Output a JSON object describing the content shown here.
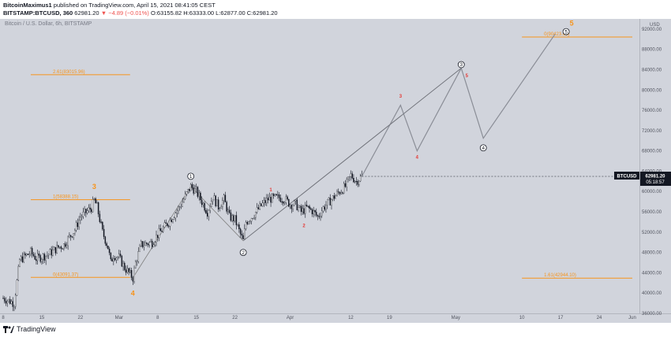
{
  "header": {
    "author": "BitcoinMaximus1",
    "published_text": "published on TradingView.com, April 15, 2021 08:41:05 CEST",
    "symbol_line": "BITSTAMP:BTCUSD, 360",
    "price": "62981.20",
    "change": "▼ −4.89 (−0.01%)",
    "ohlc": "O:63155.82  H:63333.00  L:62877.00  C:62981.20"
  },
  "chart_title": "Bitcoin / U.S. Dollar, 6h, BITSTAMP",
  "footer": {
    "brand": "TradingView"
  },
  "colors": {
    "background": "#d1d4dc",
    "fib": "#f7931a",
    "wave_red": "#e53935",
    "candle": "#131722",
    "projection": "#808080"
  },
  "chart_data": {
    "type": "candlestick",
    "symbol": "BTCUSD",
    "interval": "6h",
    "ylim": [
      36000,
      94000
    ],
    "y_ticks": [
      36000,
      40000,
      44000,
      48000,
      52000,
      56000,
      60000,
      64000,
      68000,
      72000,
      76000,
      80000,
      84000,
      88000,
      92000
    ],
    "y_tick_labels": [
      "36000.00",
      "40000.00",
      "44000.00",
      "48000.00",
      "52000.00",
      "56000.00",
      "60000.00",
      "64000.00",
      "68000.00",
      "72000.00",
      "76000.00",
      "80000.00",
      "84000.00",
      "88000.00",
      "92000.00"
    ],
    "currency_label": "USD",
    "x_ticks": [
      "8",
      "15",
      "22",
      "Mar",
      "8",
      "15",
      "22",
      "Apr",
      "12",
      "19",
      "May",
      "10",
      "17",
      "24",
      "Jun"
    ],
    "x_tick_days": [
      0,
      7,
      14,
      21,
      28,
      35,
      42,
      52,
      63,
      70,
      82,
      94,
      101,
      108,
      114
    ],
    "last_price": {
      "label": "BTCUSD",
      "value": "62981.20",
      "countdown": "05:18:57"
    },
    "price_path": [
      [
        0,
        39000
      ],
      [
        2,
        38000
      ],
      [
        3,
        46500
      ],
      [
        5,
        48000
      ],
      [
        6,
        46800
      ],
      [
        8,
        47500
      ],
      [
        10,
        49000
      ],
      [
        11,
        49500
      ],
      [
        13,
        52500
      ],
      [
        14,
        55000
      ],
      [
        16,
        56800
      ],
      [
        16.5,
        58300
      ],
      [
        17,
        57000
      ],
      [
        18,
        52000
      ],
      [
        19,
        49000
      ],
      [
        19.5,
        46000
      ],
      [
        20,
        47500
      ],
      [
        21,
        47000
      ],
      [
        22,
        45000
      ],
      [
        23.5,
        43000
      ],
      [
        24,
        46000
      ],
      [
        25,
        49500
      ],
      [
        27,
        50000
      ],
      [
        28,
        51500
      ],
      [
        30,
        54000
      ],
      [
        32,
        57000
      ],
      [
        34,
        61000
      ],
      [
        35,
        60000
      ],
      [
        36.5,
        57000
      ],
      [
        37,
        56000
      ],
      [
        38,
        59000
      ],
      [
        39,
        57000
      ],
      [
        40,
        58500
      ],
      [
        41,
        55000
      ],
      [
        42,
        54500
      ],
      [
        43,
        51500
      ],
      [
        43.5,
        50300
      ],
      [
        44,
        54000
      ],
      [
        45,
        55000
      ],
      [
        47,
        57500
      ],
      [
        48,
        58500
      ],
      [
        50,
        58800
      ],
      [
        51,
        58500
      ],
      [
        52,
        57500
      ],
      [
        53,
        57500
      ],
      [
        54,
        56000
      ],
      [
        55,
        56800
      ],
      [
        56,
        56200
      ],
      [
        57,
        55000
      ],
      [
        58,
        56800
      ],
      [
        60,
        59000
      ],
      [
        61,
        60000
      ],
      [
        62,
        61000
      ],
      [
        63,
        63200
      ],
      [
        64,
        62000
      ],
      [
        65,
        63000
      ]
    ],
    "projection_white": [
      [
        65,
        63000
      ],
      [
        72,
        77000
      ],
      [
        75,
        68000
      ],
      [
        83,
        84300
      ],
      [
        87,
        70500
      ],
      [
        100,
        91000
      ]
    ],
    "projection_black": [
      [
        43.5,
        50300
      ],
      [
        83,
        84300
      ]
    ],
    "trend_lines": [
      [
        [
          23.5,
          43000
        ],
        [
          34,
          61000
        ]
      ],
      [
        [
          34,
          61000
        ],
        [
          43.5,
          50300
        ]
      ],
      [
        [
          43.5,
          50300
        ],
        [
          83,
          84300
        ]
      ]
    ],
    "fib_levels": [
      {
        "label": "2.61(83015.96)",
        "value": 83015.96,
        "from_day": 5,
        "to_day": 23
      },
      {
        "label": "1(58388.15)",
        "value": 58388.15,
        "from_day": 5,
        "to_day": 23
      },
      {
        "label": "0(43091.37)",
        "value": 43091.37,
        "from_day": 5,
        "to_day": 23
      },
      {
        "label": "0(90423.66)",
        "value": 90423.66,
        "from_day": 94,
        "to_day": 114
      },
      {
        "label": "1.61(42944.10)",
        "value": 42944.1,
        "from_day": 94,
        "to_day": 114
      }
    ],
    "wave_labels_orange": [
      {
        "text": "3",
        "day": 16.5,
        "price": 60500
      },
      {
        "text": "4",
        "day": 23.5,
        "price": 39500
      },
      {
        "text": "5",
        "day": 103,
        "price": 92700
      }
    ],
    "wave_labels_circled": [
      {
        "text": "1",
        "day": 34,
        "price": 63000
      },
      {
        "text": "2",
        "day": 43.5,
        "price": 48000
      },
      {
        "text": "3",
        "day": 83,
        "price": 85000
      },
      {
        "text": "4",
        "day": 87,
        "price": 68600
      },
      {
        "text": "5",
        "day": 102,
        "price": 91500
      }
    ],
    "wave_labels_red": [
      {
        "text": "1",
        "day": 48.5,
        "price": 60000
      },
      {
        "text": "2",
        "day": 54.5,
        "price": 53000
      },
      {
        "text": "3",
        "day": 72,
        "price": 78500
      },
      {
        "text": "4",
        "day": 75,
        "price": 66500
      },
      {
        "text": "5",
        "day": 84,
        "price": 82500
      }
    ]
  }
}
